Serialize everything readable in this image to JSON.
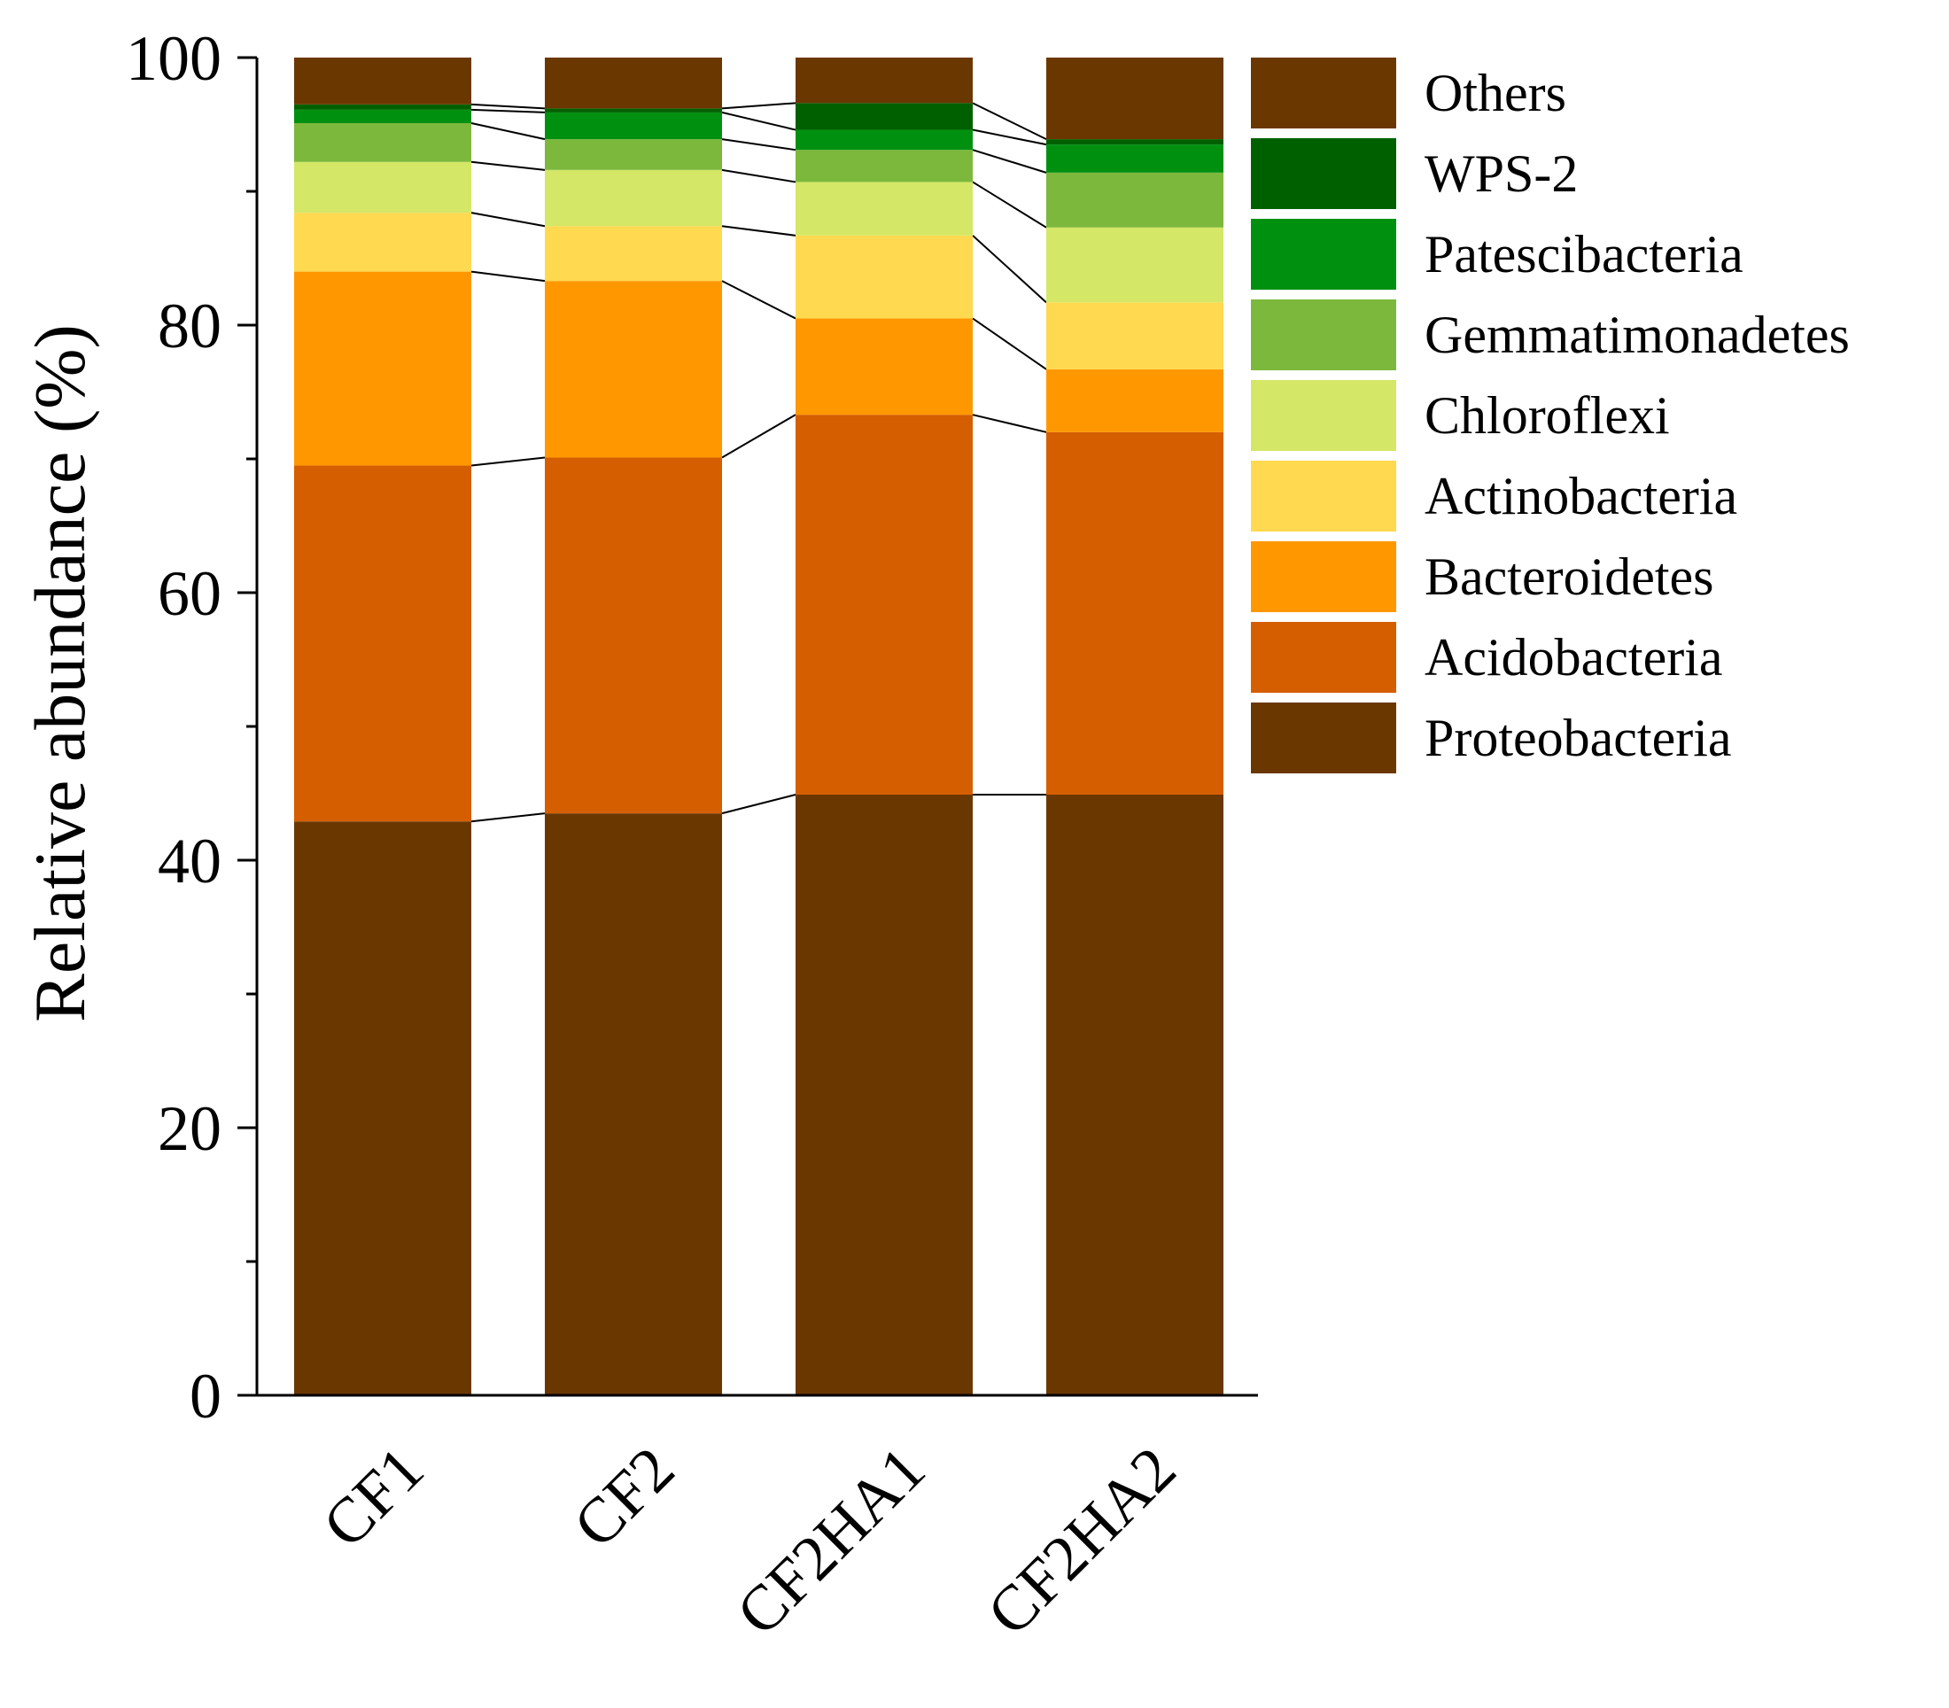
{
  "chart_data": {
    "type": "stacked_bar",
    "title": "",
    "xlabel": "",
    "ylabel": "Relative abundance (%)",
    "ylim": [
      0,
      100
    ],
    "yticks": [
      "0",
      "20",
      "40",
      "60",
      "80",
      "100"
    ],
    "categories": [
      "CF1",
      "CF2",
      "CF2HA1",
      "CF2HA2"
    ],
    "connector_lines": true,
    "legend_position": "right",
    "series": [
      {
        "name": "Proteobacteria",
        "color": "#6B3700",
        "values": [
          42.9,
          43.5,
          44.9,
          44.9
        ]
      },
      {
        "name": "Acidobacteria",
        "color": "#D55E00",
        "values": [
          26.6,
          26.6,
          28.4,
          27.1
        ]
      },
      {
        "name": "Bacteroidetes",
        "color": "#FF9800",
        "values": [
          14.5,
          13.2,
          7.2,
          4.7
        ]
      },
      {
        "name": "Actinobacteria",
        "color": "#FFD94F",
        "values": [
          4.4,
          4.1,
          6.2,
          5.0
        ]
      },
      {
        "name": "Chloroflexi",
        "color": "#D4E767",
        "values": [
          3.8,
          4.2,
          4.0,
          5.6
        ]
      },
      {
        "name": "Gemmatimonadetes",
        "color": "#7CB83C",
        "values": [
          2.9,
          2.3,
          2.4,
          4.1
        ]
      },
      {
        "name": "Patescibacteria",
        "color": "#009010",
        "values": [
          1.0,
          2.0,
          1.5,
          2.1
        ]
      },
      {
        "name": "WPS-2",
        "color": "#006000",
        "values": [
          0.4,
          0.3,
          2.0,
          0.4
        ]
      },
      {
        "name": "Others",
        "color": "#6B3700",
        "values": [
          3.5,
          3.8,
          3.4,
          6.1
        ]
      }
    ]
  }
}
